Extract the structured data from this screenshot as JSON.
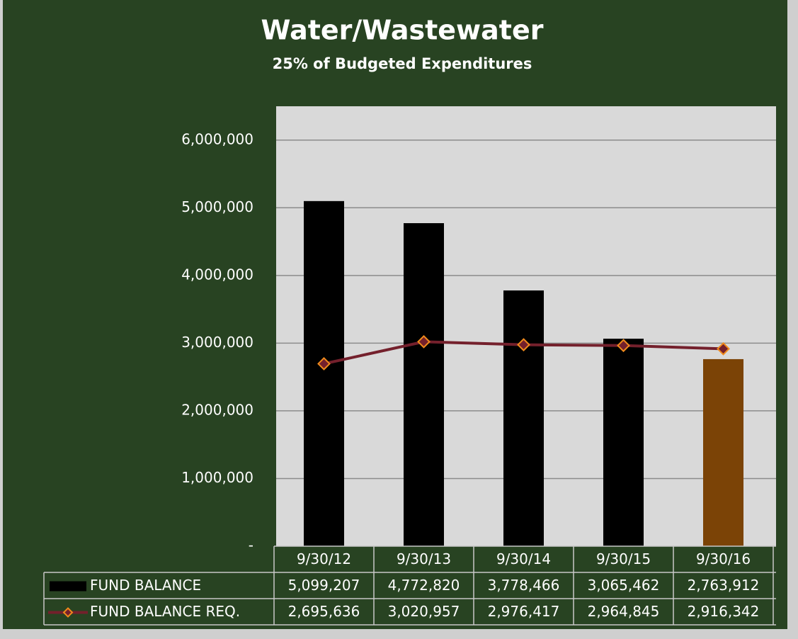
{
  "chart_data": {
    "type": "bar_line_table",
    "title": "Water/Wastewater",
    "subtitle": "25% of Budgeted Expenditures",
    "categories": [
      "9/30/12",
      "9/30/13",
      "9/30/14",
      "9/30/15",
      "9/30/16"
    ],
    "series": [
      {
        "name": "FUND BALANCE",
        "type": "bar",
        "color": "#000000",
        "colors": [
          "#000000",
          "#000000",
          "#000000",
          "#000000",
          "#7b4306"
        ],
        "values": [
          5099207,
          4772820,
          3778466,
          3065462,
          2763912
        ],
        "value_labels": [
          "5,099,207",
          "4,772,820",
          "3,778,466",
          "3,065,462",
          "2,763,912"
        ]
      },
      {
        "name": "FUND BALANCE REQ.",
        "type": "line",
        "color": "#74202c",
        "marker_edge_color": "#f08a1c",
        "values": [
          2695636,
          3020957,
          2976417,
          2964845,
          2916342
        ],
        "value_labels": [
          "2,695,636",
          "3,020,957",
          "2,976,417",
          "2,964,845",
          "2,916,342"
        ]
      }
    ],
    "ylim": [
      0,
      6500000
    ],
    "yticks": [
      {
        "value": 0,
        "label": "-"
      },
      {
        "value": 1000000,
        "label": "1,000,000"
      },
      {
        "value": 2000000,
        "label": "2,000,000"
      },
      {
        "value": 3000000,
        "label": "3,000,000"
      },
      {
        "value": 4000000,
        "label": "4,000,000"
      },
      {
        "value": 5000000,
        "label": "5,000,000"
      },
      {
        "value": 6000000,
        "label": "6,000,000"
      }
    ],
    "grid": true
  }
}
